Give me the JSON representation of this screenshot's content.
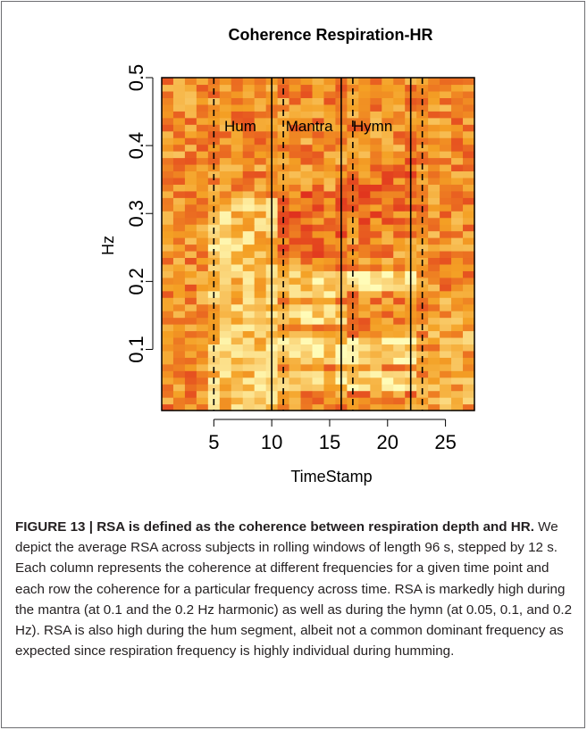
{
  "chart_data": {
    "type": "heatmap",
    "title": "Coherence Respiration-HR",
    "xlabel": "TimeStamp",
    "ylabel": "Hz",
    "xlim": [
      0.5,
      27.5
    ],
    "ylim": [
      0.01,
      0.5
    ],
    "x_ticks": [
      "5",
      "10",
      "15",
      "20",
      "25"
    ],
    "y_ticks": [
      "0.1",
      "0.2",
      "0.3",
      "0.4",
      "0.5"
    ],
    "segments": [
      {
        "label": "Hum",
        "start": 5,
        "end": 10
      },
      {
        "label": "Mantra",
        "start": 11,
        "end": 16
      },
      {
        "label": "Hymn",
        "start": 17,
        "end": 22
      }
    ],
    "segment_start_lines": [
      5,
      11,
      17,
      23
    ],
    "segment_end_lines": [
      10,
      16,
      22
    ],
    "colors": {
      "low": "#e0301e",
      "mid": "#f4a024",
      "high": "#fffcb8",
      "frame": "#000000"
    }
  },
  "caption": {
    "label": "FIGURE 13 | ",
    "title": "RSA is defined as the coherence between respiration depth and HR.",
    "body": " We depict the average RSA across subjects in rolling windows of length 96 s, stepped by 12 s. Each column represents the coherence at different frequencies for a given time point and each row the coherence for a particular frequency across time. RSA is markedly high during the mantra (at 0.1 and the 0.2 Hz harmonic) as well as during the hymn (at 0.05, 0.1, and 0.2 Hz). RSA is also high during the hum segment, albeit not a common dominant frequency as expected since respiration frequency is highly individual during humming."
  }
}
